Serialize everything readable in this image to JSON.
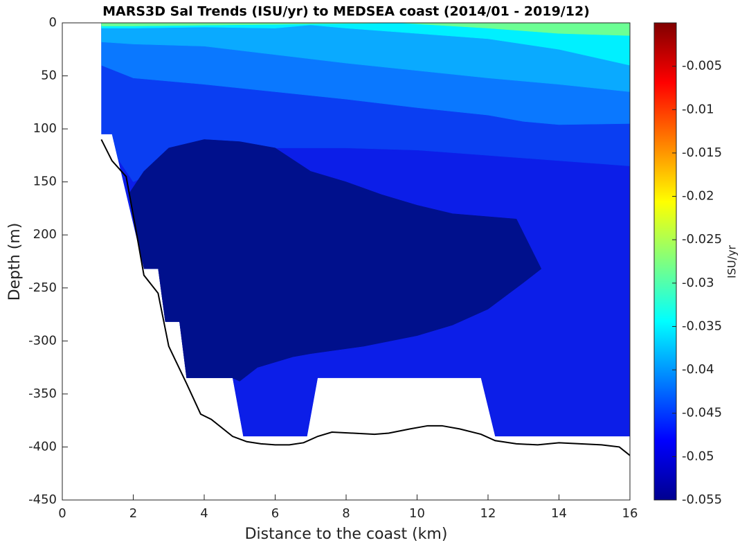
{
  "chart_data": {
    "type": "contour",
    "title": "MARS3D Sal Trends (ISU/yr) to MEDSEA coast (2014/01 - 2019/12)",
    "xlabel": "Distance to the coast (km)",
    "ylabel": "Depth (m)",
    "xlim": [
      0,
      16
    ],
    "xticks": [
      0,
      2,
      4,
      6,
      8,
      10,
      12,
      14,
      16
    ],
    "ylim": [
      -450,
      0
    ],
    "yticks": [
      {
        "value": 0,
        "label": "0"
      },
      {
        "value": -50,
        "label": "50"
      },
      {
        "value": -100,
        "label": "100"
      },
      {
        "value": -150,
        "label": "150"
      },
      {
        "value": -200,
        "label": "200"
      },
      -250,
      -300,
      -350,
      -400,
      -450
    ],
    "regions": [
      {
        "value": -0.05,
        "color": "#0c1ee8",
        "x": [
          1.1,
          16,
          16,
          12.2,
          11.8,
          7.2,
          6.9,
          5.1,
          4.8,
          3.5,
          3.3,
          2.9,
          2.7,
          2.3,
          1.4,
          1.1
        ],
        "y": [
          0,
          0,
          -390,
          -390,
          -335,
          -335,
          -390,
          -390,
          -335,
          -335,
          -282,
          -282,
          -232,
          -232,
          -105,
          -105
        ]
      },
      {
        "value": -0.045,
        "color": "#0a3ef2",
        "x": [
          1.1,
          1.1,
          1.6,
          2,
          3,
          4,
          6,
          8,
          10,
          12,
          14,
          16,
          16
        ],
        "y": [
          0,
          -105,
          -130,
          -150,
          -135,
          -125,
          -118,
          -118,
          -120,
          -125,
          -130,
          -135,
          0
        ]
      },
      {
        "value": -0.04,
        "color": "#0a78ff",
        "x": [
          1.1,
          1.1,
          2,
          4,
          6,
          8,
          10,
          12,
          13,
          14,
          16,
          16
        ],
        "y": [
          0,
          -40,
          -52,
          -58,
          -65,
          -72,
          -80,
          -87,
          -93,
          -96,
          -95,
          0
        ]
      },
      {
        "value": -0.035,
        "color": "#0aaaff",
        "x": [
          1.1,
          1.1,
          2,
          4,
          6,
          8,
          10,
          12,
          14,
          16,
          16
        ],
        "y": [
          0,
          -18,
          -20,
          -22,
          -30,
          -38,
          -45,
          -52,
          -58,
          -65,
          0
        ]
      },
      {
        "value": -0.03,
        "color": "#00f0ff",
        "x": [
          1.1,
          1.1,
          2,
          4,
          6,
          7,
          8,
          10,
          12,
          14,
          16,
          16
        ],
        "y": [
          0,
          -5,
          -5,
          -4,
          -5,
          -2,
          -5,
          -10,
          -15,
          -25,
          -40,
          0
        ]
      },
      {
        "value": -0.025,
        "color": "#6cff94",
        "x": [
          1.1,
          1.1,
          2,
          9.5,
          12,
          14,
          16,
          16
        ],
        "y": [
          0,
          -3,
          -3,
          0,
          -5,
          -10,
          -12,
          0
        ]
      },
      {
        "value": -0.055,
        "color": "#00108c",
        "x": [
          1.9,
          2.3,
          3,
          4,
          5,
          6,
          7,
          8,
          9,
          10,
          11,
          12.8,
          13.5,
          13,
          12,
          11,
          10,
          8.5,
          7,
          6.5,
          5.5,
          5,
          4.8,
          3.5,
          3.3,
          2.9,
          2.7,
          2.3
        ],
        "y": [
          -160,
          -140,
          -118,
          -110,
          -112,
          -118,
          -140,
          -150,
          -162,
          -172,
          -180,
          -185,
          -232,
          -245,
          -270,
          -285,
          -295,
          -305,
          -312,
          -315,
          -325,
          -338,
          -335,
          -335,
          -282,
          -282,
          -232,
          -232
        ]
      }
    ],
    "bathymetry": {
      "color": "#000000",
      "x": [
        1.1,
        1.4,
        1.8,
        2.1,
        2.3,
        2.7,
        3,
        3.5,
        3.9,
        4.2,
        4.8,
        5.2,
        5.6,
        6,
        6.4,
        6.8,
        7.2,
        7.6,
        8.2,
        8.8,
        9.2,
        9.8,
        10.3,
        10.7,
        11.2,
        11.8,
        12.2,
        12.8,
        13.4,
        14,
        14.6,
        15.2,
        15.7,
        16
      ],
      "y": [
        -110,
        -130,
        -145,
        -200,
        -238,
        -255,
        -305,
        -340,
        -369,
        -374,
        -390,
        -395,
        -397,
        -398,
        -398,
        -396,
        -390,
        -386,
        -387,
        -388,
        -387,
        -383,
        -380,
        -380,
        -383,
        -388,
        -394,
        -397,
        -398,
        -396,
        -397,
        -398,
        -400,
        -408
      ]
    },
    "colorbar": {
      "label": "ISU/yr",
      "lim": [
        -0.055,
        0
      ],
      "ticks": [
        -0.055,
        -0.05,
        -0.045,
        -0.04,
        -0.035,
        -0.03,
        -0.025,
        -0.02,
        -0.015,
        -0.01,
        -0.005
      ]
    }
  }
}
